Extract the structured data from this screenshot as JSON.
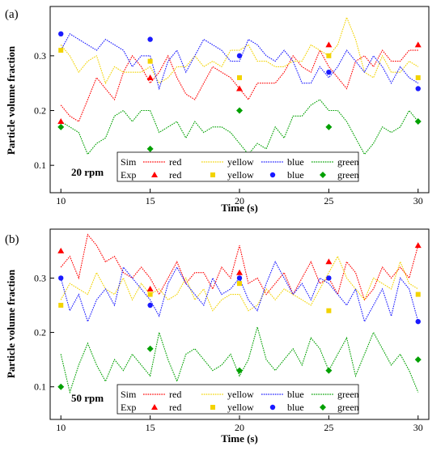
{
  "colors": {
    "red": "#ff0000",
    "yellow": "#f2d300",
    "blue": "#1a1aff",
    "green": "#00a000",
    "axis": "#000000"
  },
  "chart_data": [
    {
      "type": "line",
      "panel_label": "(a)",
      "speed_label": "20 rpm",
      "xlabel": "Time (s)",
      "ylabel": "Particle volume fraction",
      "xlim": [
        9.4,
        30.6
      ],
      "ylim": [
        0.05,
        0.39
      ],
      "x_ticks": [
        10,
        15,
        20,
        25,
        30
      ],
      "x_tick_labels": [
        "10",
        "15",
        "20",
        "25",
        "30"
      ],
      "y_ticks": [
        0.1,
        0.2,
        0.3
      ],
      "y_tick_labels": [
        "0.1",
        "0.2",
        "0.3"
      ],
      "grid": false,
      "legend": {
        "position": "bottom-center",
        "row_labels": [
          "Sim",
          "Exp"
        ],
        "entries": [
          "red",
          "yellow",
          "blue",
          "green"
        ]
      },
      "sim_series": [
        {
          "name": "red",
          "color": "red",
          "x": [
            10,
            10.5,
            11,
            11.5,
            12,
            12.5,
            13,
            13.5,
            14,
            14.5,
            15,
            15.5,
            16,
            16.5,
            17,
            17.5,
            18,
            18.5,
            19,
            19.5,
            20,
            20.5,
            21,
            21.5,
            22,
            22.5,
            23,
            23.5,
            24,
            24.5,
            25,
            25.5,
            26,
            26.5,
            27,
            27.5,
            28,
            28.5,
            29,
            29.5,
            30
          ],
          "y": [
            0.21,
            0.19,
            0.18,
            0.22,
            0.26,
            0.24,
            0.22,
            0.27,
            0.3,
            0.28,
            0.25,
            0.27,
            0.3,
            0.26,
            0.23,
            0.22,
            0.25,
            0.28,
            0.27,
            0.26,
            0.24,
            0.22,
            0.25,
            0.25,
            0.25,
            0.27,
            0.3,
            0.28,
            0.27,
            0.31,
            0.28,
            0.26,
            0.24,
            0.29,
            0.3,
            0.28,
            0.31,
            0.29,
            0.29,
            0.31,
            0.31
          ]
        },
        {
          "name": "yellow",
          "color": "yellow",
          "x": [
            10,
            10.5,
            11,
            11.5,
            12,
            12.5,
            13,
            13.5,
            14,
            14.5,
            15,
            15.5,
            16,
            16.5,
            17,
            17.5,
            18,
            18.5,
            19,
            19.5,
            20,
            20.5,
            21,
            21.5,
            22,
            22.5,
            23,
            23.5,
            24,
            24.5,
            25,
            25.5,
            26,
            26.5,
            27,
            27.5,
            28,
            28.5,
            29,
            29.5,
            30
          ],
          "y": [
            0.32,
            0.3,
            0.27,
            0.29,
            0.3,
            0.25,
            0.28,
            0.27,
            0.27,
            0.27,
            0.28,
            0.25,
            0.26,
            0.28,
            0.28,
            0.3,
            0.28,
            0.29,
            0.28,
            0.31,
            0.31,
            0.32,
            0.29,
            0.29,
            0.28,
            0.28,
            0.29,
            0.29,
            0.32,
            0.31,
            0.3,
            0.32,
            0.37,
            0.33,
            0.27,
            0.26,
            0.3,
            0.27,
            0.27,
            0.29,
            0.28
          ]
        },
        {
          "name": "blue",
          "color": "blue",
          "x": [
            10,
            10.5,
            11,
            11.5,
            12,
            12.5,
            13,
            13.5,
            14,
            14.5,
            15,
            15.5,
            16,
            16.5,
            17,
            17.5,
            18,
            18.5,
            19,
            19.5,
            20,
            20.5,
            21,
            21.5,
            22,
            22.5,
            23,
            23.5,
            24,
            24.5,
            25,
            25.5,
            26,
            26.5,
            27,
            27.5,
            28,
            28.5,
            29,
            29.5,
            30
          ],
          "y": [
            0.31,
            0.34,
            0.33,
            0.32,
            0.31,
            0.33,
            0.32,
            0.31,
            0.28,
            0.3,
            0.3,
            0.24,
            0.29,
            0.31,
            0.27,
            0.3,
            0.33,
            0.32,
            0.31,
            0.29,
            0.29,
            0.33,
            0.32,
            0.3,
            0.29,
            0.31,
            0.29,
            0.25,
            0.25,
            0.28,
            0.26,
            0.28,
            0.31,
            0.29,
            0.27,
            0.3,
            0.28,
            0.25,
            0.28,
            0.26,
            0.25
          ]
        },
        {
          "name": "green",
          "color": "green",
          "x": [
            10,
            10.5,
            11,
            11.5,
            12,
            12.5,
            13,
            13.5,
            14,
            14.5,
            15,
            15.5,
            16,
            16.5,
            17,
            17.5,
            18,
            18.5,
            19,
            19.5,
            20,
            20.5,
            21,
            21.5,
            22,
            22.5,
            23,
            23.5,
            24,
            24.5,
            25,
            25.5,
            26,
            26.5,
            27,
            27.5,
            28,
            28.5,
            29,
            29.5,
            30
          ],
          "y": [
            0.18,
            0.17,
            0.16,
            0.12,
            0.14,
            0.15,
            0.19,
            0.2,
            0.18,
            0.2,
            0.2,
            0.16,
            0.17,
            0.18,
            0.15,
            0.18,
            0.16,
            0.17,
            0.17,
            0.16,
            0.14,
            0.12,
            0.14,
            0.13,
            0.17,
            0.15,
            0.19,
            0.19,
            0.21,
            0.22,
            0.2,
            0.2,
            0.18,
            0.15,
            0.12,
            0.14,
            0.17,
            0.16,
            0.17,
            0.2,
            0.18
          ]
        }
      ],
      "exp_series": [
        {
          "name": "red",
          "color": "red",
          "marker": "triangle",
          "x": [
            10,
            15,
            20,
            25,
            30
          ],
          "y": [
            0.18,
            0.26,
            0.24,
            0.32,
            0.32
          ]
        },
        {
          "name": "yellow",
          "color": "yellow",
          "marker": "square",
          "x": [
            10,
            15,
            20,
            25,
            30
          ],
          "y": [
            0.31,
            0.29,
            0.26,
            0.3,
            0.26
          ]
        },
        {
          "name": "blue",
          "color": "blue",
          "marker": "circle",
          "x": [
            10,
            15,
            20,
            25,
            30
          ],
          "y": [
            0.34,
            0.33,
            0.3,
            0.27,
            0.24
          ]
        },
        {
          "name": "green",
          "color": "green",
          "marker": "diamond",
          "x": [
            10,
            15,
            20,
            25,
            30
          ],
          "y": [
            0.17,
            0.13,
            0.2,
            0.17,
            0.18
          ]
        }
      ]
    },
    {
      "type": "line",
      "panel_label": "(b)",
      "speed_label": "50 rpm",
      "xlabel": "Time (s)",
      "ylabel": "Particle volume fraction",
      "xlim": [
        9.4,
        30.6
      ],
      "ylim": [
        0.04,
        0.39
      ],
      "x_ticks": [
        10,
        15,
        20,
        25,
        30
      ],
      "x_tick_labels": [
        "10",
        "15",
        "20",
        "25",
        "30"
      ],
      "y_ticks": [
        0.1,
        0.2,
        0.3
      ],
      "y_tick_labels": [
        "0.1",
        "0.2",
        "0.3"
      ],
      "grid": false,
      "legend": {
        "position": "bottom-center",
        "row_labels": [
          "Sim",
          "Exp"
        ],
        "entries": [
          "red",
          "yellow",
          "blue",
          "green"
        ]
      },
      "sim_series": [
        {
          "name": "red",
          "color": "red",
          "x": [
            10,
            10.5,
            11,
            11.5,
            12,
            12.5,
            13,
            13.5,
            14,
            14.5,
            15,
            15.5,
            16,
            16.5,
            17,
            17.5,
            18,
            18.5,
            19,
            19.5,
            20,
            20.5,
            21,
            21.5,
            22,
            22.5,
            23,
            23.5,
            24,
            24.5,
            25,
            25.5,
            26,
            26.5,
            27,
            27.5,
            28,
            28.5,
            29,
            29.5,
            30
          ],
          "y": [
            0.32,
            0.34,
            0.3,
            0.38,
            0.36,
            0.33,
            0.34,
            0.31,
            0.3,
            0.32,
            0.3,
            0.27,
            0.3,
            0.33,
            0.29,
            0.31,
            0.31,
            0.28,
            0.32,
            0.3,
            0.36,
            0.29,
            0.3,
            0.27,
            0.29,
            0.31,
            0.27,
            0.3,
            0.33,
            0.29,
            0.3,
            0.27,
            0.33,
            0.31,
            0.26,
            0.28,
            0.32,
            0.3,
            0.32,
            0.3,
            0.36
          ]
        },
        {
          "name": "yellow",
          "color": "yellow",
          "x": [
            10,
            10.5,
            11,
            11.5,
            12,
            12.5,
            13,
            13.5,
            14,
            14.5,
            15,
            15.5,
            16,
            16.5,
            17,
            17.5,
            18,
            18.5,
            19,
            19.5,
            20,
            20.5,
            21,
            21.5,
            22,
            22.5,
            23,
            23.5,
            24,
            24.5,
            25,
            25.5,
            26,
            26.5,
            27,
            27.5,
            28,
            28.5,
            29,
            29.5,
            30
          ],
          "y": [
            0.26,
            0.29,
            0.28,
            0.27,
            0.31,
            0.28,
            0.27,
            0.3,
            0.26,
            0.29,
            0.27,
            0.28,
            0.26,
            0.27,
            0.3,
            0.26,
            0.28,
            0.24,
            0.26,
            0.27,
            0.27,
            0.24,
            0.25,
            0.28,
            0.26,
            0.28,
            0.27,
            0.26,
            0.25,
            0.28,
            0.31,
            0.34,
            0.3,
            0.28,
            0.26,
            0.3,
            0.29,
            0.28,
            0.33,
            0.29,
            0.28
          ]
        },
        {
          "name": "blue",
          "color": "blue",
          "x": [
            10,
            10.5,
            11,
            11.5,
            12,
            12.5,
            13,
            13.5,
            14,
            14.5,
            15,
            15.5,
            16,
            16.5,
            17,
            17.5,
            18,
            18.5,
            19,
            19.5,
            20,
            20.5,
            21,
            21.5,
            22,
            22.5,
            23,
            23.5,
            24,
            24.5,
            25,
            25.5,
            26,
            26.5,
            27,
            27.5,
            28,
            28.5,
            29,
            29.5,
            30
          ],
          "y": [
            0.3,
            0.24,
            0.27,
            0.22,
            0.26,
            0.28,
            0.25,
            0.32,
            0.3,
            0.28,
            0.26,
            0.23,
            0.29,
            0.32,
            0.29,
            0.27,
            0.25,
            0.3,
            0.27,
            0.28,
            0.3,
            0.26,
            0.24,
            0.29,
            0.33,
            0.3,
            0.27,
            0.29,
            0.26,
            0.3,
            0.29,
            0.27,
            0.25,
            0.28,
            0.22,
            0.25,
            0.28,
            0.23,
            0.3,
            0.28,
            0.22
          ]
        },
        {
          "name": "green",
          "color": "green",
          "x": [
            10,
            10.5,
            11,
            11.5,
            12,
            12.5,
            13,
            13.5,
            14,
            14.5,
            15,
            15.5,
            16,
            16.5,
            17,
            17.5,
            18,
            18.5,
            19,
            19.5,
            20,
            20.5,
            21,
            21.5,
            22,
            22.5,
            23,
            23.5,
            24,
            24.5,
            25,
            25.5,
            26,
            26.5,
            27,
            27.5,
            28,
            28.5,
            29,
            29.5,
            30
          ],
          "y": [
            0.16,
            0.09,
            0.14,
            0.18,
            0.14,
            0.11,
            0.15,
            0.13,
            0.16,
            0.14,
            0.12,
            0.2,
            0.15,
            0.11,
            0.16,
            0.17,
            0.15,
            0.13,
            0.14,
            0.16,
            0.12,
            0.15,
            0.21,
            0.15,
            0.13,
            0.15,
            0.17,
            0.14,
            0.19,
            0.17,
            0.13,
            0.16,
            0.19,
            0.12,
            0.16,
            0.2,
            0.17,
            0.14,
            0.16,
            0.13,
            0.09
          ]
        }
      ],
      "exp_series": [
        {
          "name": "red",
          "color": "red",
          "marker": "triangle",
          "x": [
            10,
            15,
            20,
            25,
            30
          ],
          "y": [
            0.35,
            0.28,
            0.31,
            0.33,
            0.36
          ]
        },
        {
          "name": "yellow",
          "color": "yellow",
          "marker": "square",
          "x": [
            10,
            15,
            20,
            25,
            30
          ],
          "y": [
            0.25,
            0.27,
            0.29,
            0.24,
            0.27
          ]
        },
        {
          "name": "blue",
          "color": "blue",
          "marker": "circle",
          "x": [
            10,
            15,
            20,
            25,
            30
          ],
          "y": [
            0.3,
            0.25,
            0.3,
            0.3,
            0.22
          ]
        },
        {
          "name": "green",
          "color": "green",
          "marker": "diamond",
          "x": [
            10,
            15,
            20,
            25,
            30
          ],
          "y": [
            0.1,
            0.17,
            0.13,
            0.13,
            0.15
          ]
        }
      ]
    }
  ]
}
